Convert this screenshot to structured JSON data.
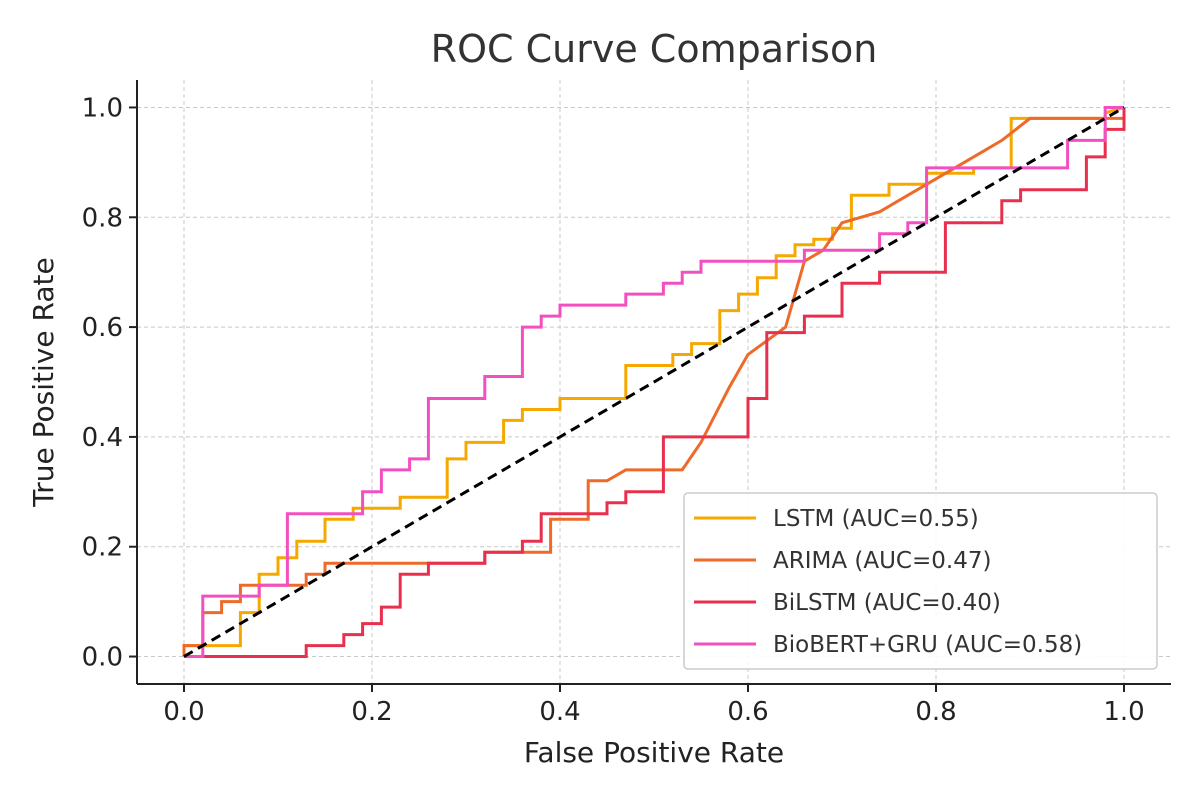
{
  "chart_data": {
    "type": "line",
    "title": "ROC Curve Comparison",
    "xlabel": "False Positive Rate",
    "ylabel": "True Positive Rate",
    "xlim": [
      -0.05,
      1.05
    ],
    "ylim": [
      -0.05,
      1.05
    ],
    "xticks": [
      0.0,
      0.2,
      0.4,
      0.6,
      0.8,
      1.0
    ],
    "yticks": [
      0.0,
      0.2,
      0.4,
      0.6,
      0.8,
      1.0
    ],
    "xtick_labels": [
      "0.0",
      "0.2",
      "0.4",
      "0.6",
      "0.8",
      "1.0"
    ],
    "ytick_labels": [
      "0.0",
      "0.2",
      "0.4",
      "0.6",
      "0.8",
      "1.0"
    ],
    "grid": true,
    "legend_position": "lower-right",
    "diagonal": {
      "x": [
        0,
        1
      ],
      "y": [
        0,
        1
      ],
      "color": "#000000",
      "style": "dashed"
    },
    "series": [
      {
        "name": "LSTM (AUC=0.55)",
        "color": "#F5A800",
        "x": [
          0,
          0,
          0.06,
          0.06,
          0.08,
          0.08,
          0.1,
          0.1,
          0.12,
          0.12,
          0.15,
          0.15,
          0.18,
          0.18,
          0.23,
          0.23,
          0.28,
          0.28,
          0.3,
          0.3,
          0.34,
          0.34,
          0.36,
          0.36,
          0.4,
          0.4,
          0.47,
          0.47,
          0.52,
          0.52,
          0.54,
          0.54,
          0.57,
          0.57,
          0.59,
          0.59,
          0.61,
          0.61,
          0.63,
          0.63,
          0.65,
          0.65,
          0.67,
          0.67,
          0.69,
          0.69,
          0.71,
          0.71,
          0.75,
          0.75,
          0.79,
          0.79,
          0.84,
          0.84,
          0.88,
          0.88,
          0.9,
          0.9,
          0.98,
          0.98,
          1.0
        ],
        "y": [
          0,
          0.02,
          0.02,
          0.08,
          0.08,
          0.15,
          0.15,
          0.18,
          0.18,
          0.21,
          0.21,
          0.25,
          0.25,
          0.27,
          0.27,
          0.29,
          0.29,
          0.36,
          0.36,
          0.39,
          0.39,
          0.43,
          0.43,
          0.45,
          0.45,
          0.47,
          0.47,
          0.53,
          0.53,
          0.55,
          0.55,
          0.57,
          0.57,
          0.63,
          0.63,
          0.66,
          0.66,
          0.69,
          0.69,
          0.73,
          0.73,
          0.75,
          0.75,
          0.76,
          0.76,
          0.78,
          0.78,
          0.84,
          0.84,
          0.86,
          0.86,
          0.88,
          0.88,
          0.89,
          0.89,
          0.98,
          0.98,
          0.98,
          0.98,
          0.99,
          1.0
        ]
      },
      {
        "name": "ARIMA (AUC=0.47)",
        "color": "#EE6A28",
        "x": [
          0,
          0,
          0.02,
          0.02,
          0.04,
          0.04,
          0.06,
          0.06,
          0.08,
          0.08,
          0.09,
          0.09,
          0.13,
          0.13,
          0.15,
          0.15,
          0.17,
          0.17,
          0.32,
          0.32,
          0.39,
          0.39,
          0.43,
          0.43,
          0.45,
          0.47,
          0.47,
          0.49,
          0.49,
          0.53,
          0.53,
          0.55,
          0.55,
          0.58,
          0.58,
          0.6,
          0.6,
          0.64,
          0.64,
          0.66,
          0.66,
          0.68,
          0.68,
          0.7,
          0.7,
          0.74,
          0.74,
          0.78,
          0.78,
          0.8,
          0.8,
          0.83,
          0.83,
          0.85,
          0.85,
          0.87,
          0.87,
          0.9,
          0.9,
          0.92,
          0.92,
          1.0,
          1.0
        ],
        "y": [
          0,
          0.02,
          0.02,
          0.08,
          0.08,
          0.1,
          0.1,
          0.13,
          0.13,
          0.13,
          0.13,
          0.13,
          0.13,
          0.15,
          0.15,
          0.17,
          0.17,
          0.17,
          0.17,
          0.19,
          0.19,
          0.25,
          0.25,
          0.32,
          0.32,
          0.34,
          0.34,
          0.34,
          0.34,
          0.34,
          0.34,
          0.39,
          0.39,
          0.49,
          0.49,
          0.55,
          0.55,
          0.6,
          0.6,
          0.72,
          0.72,
          0.74,
          0.74,
          0.79,
          0.79,
          0.81,
          0.81,
          0.85,
          0.85,
          0.87,
          0.87,
          0.9,
          0.9,
          0.92,
          0.92,
          0.94,
          0.94,
          0.98,
          0.98,
          0.98,
          0.98,
          0.98,
          1.0
        ]
      },
      {
        "name": "BiLSTM (AUC=0.40)",
        "color": "#E8304E",
        "x": [
          0,
          0,
          0.13,
          0.13,
          0.17,
          0.17,
          0.19,
          0.19,
          0.21,
          0.21,
          0.23,
          0.23,
          0.26,
          0.26,
          0.32,
          0.32,
          0.36,
          0.36,
          0.38,
          0.38,
          0.43,
          0.43,
          0.45,
          0.45,
          0.47,
          0.47,
          0.51,
          0.51,
          0.6,
          0.6,
          0.62,
          0.62,
          0.66,
          0.66,
          0.7,
          0.7,
          0.74,
          0.74,
          0.81,
          0.81,
          0.87,
          0.87,
          0.89,
          0.89,
          0.92,
          0.92,
          0.96,
          0.96,
          0.98,
          0.98,
          1.0,
          1.0
        ],
        "y": [
          0,
          0,
          0,
          0.02,
          0.02,
          0.04,
          0.04,
          0.06,
          0.06,
          0.09,
          0.09,
          0.15,
          0.15,
          0.17,
          0.17,
          0.19,
          0.19,
          0.21,
          0.21,
          0.26,
          0.26,
          0.26,
          0.26,
          0.28,
          0.28,
          0.3,
          0.3,
          0.4,
          0.4,
          0.47,
          0.47,
          0.59,
          0.59,
          0.62,
          0.62,
          0.68,
          0.68,
          0.7,
          0.7,
          0.79,
          0.79,
          0.83,
          0.83,
          0.85,
          0.85,
          0.85,
          0.85,
          0.91,
          0.91,
          0.96,
          0.96,
          1.0
        ]
      },
      {
        "name": "BioBERT+GRU (AUC=0.58)",
        "color": "#F250C0",
        "x": [
          0,
          0.02,
          0.02,
          0.08,
          0.08,
          0.11,
          0.11,
          0.19,
          0.19,
          0.21,
          0.21,
          0.24,
          0.24,
          0.26,
          0.26,
          0.32,
          0.32,
          0.36,
          0.36,
          0.38,
          0.38,
          0.4,
          0.4,
          0.47,
          0.47,
          0.51,
          0.51,
          0.53,
          0.53,
          0.55,
          0.55,
          0.66,
          0.66,
          0.74,
          0.74,
          0.77,
          0.77,
          0.79,
          0.79,
          0.94,
          0.94,
          0.98,
          0.98,
          1.0
        ],
        "y": [
          0,
          0,
          0.11,
          0.11,
          0.13,
          0.13,
          0.26,
          0.26,
          0.3,
          0.3,
          0.34,
          0.34,
          0.36,
          0.36,
          0.47,
          0.47,
          0.51,
          0.51,
          0.6,
          0.6,
          0.62,
          0.62,
          0.64,
          0.64,
          0.66,
          0.66,
          0.68,
          0.68,
          0.7,
          0.7,
          0.72,
          0.72,
          0.74,
          0.74,
          0.77,
          0.77,
          0.79,
          0.79,
          0.89,
          0.89,
          0.94,
          0.94,
          1.0,
          1.0
        ]
      }
    ]
  }
}
